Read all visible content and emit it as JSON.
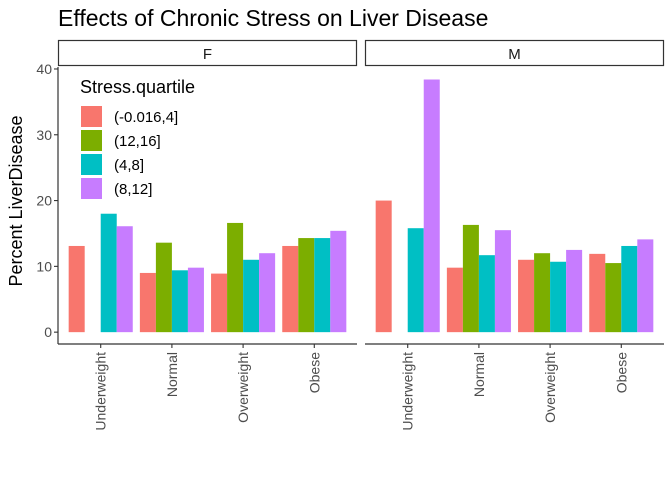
{
  "chart_data": {
    "type": "bar",
    "title": "Effects of Chronic Stress on Liver Disease",
    "xlabel": "",
    "ylabel": "Percent LiverDisease",
    "ylim": [
      -1.8,
      40.3
    ],
    "yticks": [
      0,
      10,
      20,
      30,
      40
    ],
    "grid": false,
    "legend": {
      "title": "Stress.quartile",
      "placement": "top-left",
      "entries": [
        "(-0.016,4]",
        "(12,16]",
        "(4,8]",
        "(8,12]"
      ]
    },
    "categories": [
      "Underweight",
      "Normal",
      "Overweight",
      "Obese"
    ],
    "colors": {
      "(-0.016,4]": "#F8766D",
      "(12,16]": "#7CAE00",
      "(4,8]": "#00BFC4",
      "(8,12]": "#C77CFF"
    },
    "panels": [
      {
        "label": "F",
        "series": [
          {
            "name": "(-0.016,4]",
            "values": [
              13.1,
              9.0,
              8.9,
              13.1
            ]
          },
          {
            "name": "(12,16]",
            "values": [
              null,
              13.6,
              16.6,
              14.3
            ]
          },
          {
            "name": "(4,8]",
            "values": [
              18.0,
              9.4,
              11.0,
              14.3
            ]
          },
          {
            "name": "(8,12]",
            "values": [
              16.1,
              9.8,
              12.0,
              15.4
            ]
          }
        ]
      },
      {
        "label": "M",
        "series": [
          {
            "name": "(-0.016,4]",
            "values": [
              20.0,
              9.8,
              11.0,
              11.9
            ]
          },
          {
            "name": "(12,16]",
            "values": [
              null,
              16.3,
              12.0,
              10.5
            ]
          },
          {
            "name": "(4,8]",
            "values": [
              15.8,
              11.7,
              10.7,
              13.1
            ]
          },
          {
            "name": "(8,12]",
            "values": [
              38.4,
              15.5,
              12.5,
              14.1
            ]
          }
        ]
      }
    ]
  }
}
